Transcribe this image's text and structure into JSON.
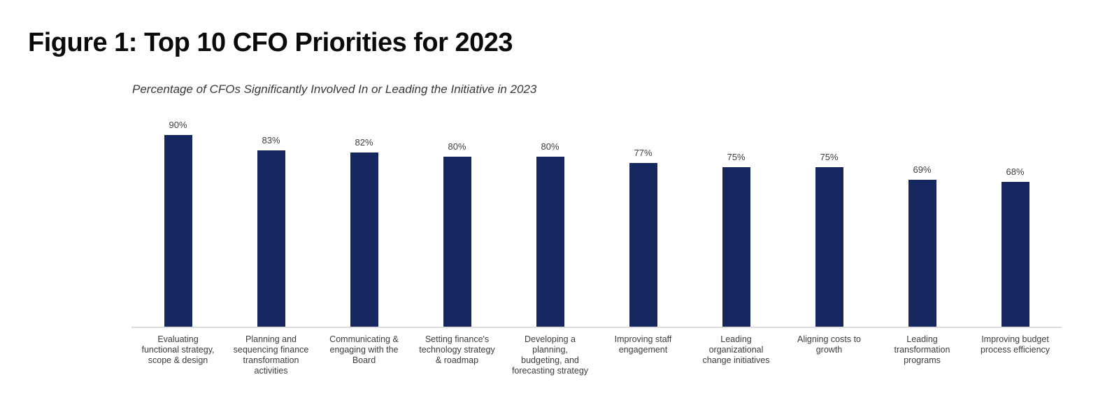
{
  "figure": {
    "title": "Figure 1: Top 10 CFO Priorities for 2023",
    "subtitle": "Percentage of CFOs Significantly Involved In or Leading the Initiative in 2023"
  },
  "colors": {
    "bar": "#16265E",
    "value_label": "#3D3D3D",
    "category_label": "#3C3C3C",
    "baseline": "#DCDCDC",
    "title": "#0A0A0A",
    "background": "#FFFFFF"
  },
  "chart_data": {
    "type": "bar",
    "title": "Figure 1: Top 10 CFO Priorities for 2023",
    "subtitle": "Percentage of CFOs Significantly Involved In or Leading the Initiative in 2023",
    "orientation": "vertical",
    "unit": "%",
    "ylim": [
      0,
      100
    ],
    "grid": false,
    "legend": false,
    "axes_shown": "baseline-only",
    "value_labels_shown": true,
    "categories": [
      "Evaluating functional strategy, scope & design",
      "Planning and sequencing finance transformation activities",
      "Communicating & engaging with the Board",
      "Setting finance's technology strategy & roadmap",
      "Developing a planning, budgeting, and forecasting strategy",
      "Improving staff engagement",
      "Leading organizational change initiatives",
      "Aligning costs to growth",
      "Leading transformation programs",
      "Improving budget process efficiency"
    ],
    "category_label_lines": [
      "Evaluating\nfunctional strategy,\nscope & design",
      "Planning and\nsequencing finance\ntransformation\nactivities",
      "Communicating &\nengaging with the\nBoard",
      "Setting finance's\ntechnology strategy\n& roadmap",
      "Developing a\nplanning,\nbudgeting, and\nforecasting strategy",
      "Improving staff\nengagement",
      "Leading\norganizational\nchange initiatives",
      "Aligning costs to\ngrowth",
      "Leading\ntransformation\nprograms",
      "Improving budget\nprocess efficiency"
    ],
    "values": [
      90,
      83,
      82,
      80,
      80,
      77,
      75,
      75,
      69,
      68
    ],
    "value_labels": [
      "90%",
      "83%",
      "82%",
      "80%",
      "80%",
      "77%",
      "75%",
      "75%",
      "69%",
      "68%"
    ]
  }
}
